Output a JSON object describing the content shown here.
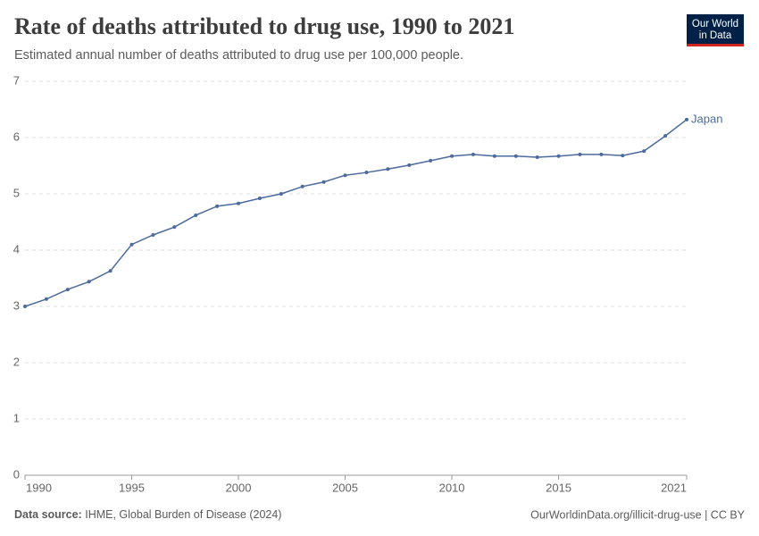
{
  "logo": {
    "line1": "Our World",
    "line2": "in Data"
  },
  "chart_data": {
    "type": "line",
    "title": "Rate of deaths attributed to drug use, 1990 to 2021",
    "subtitle": "Estimated annual number of deaths attributed to drug use per 100,000 people.",
    "x": [
      1990,
      1991,
      1992,
      1993,
      1994,
      1995,
      1996,
      1997,
      1998,
      1999,
      2000,
      2001,
      2002,
      2003,
      2004,
      2005,
      2006,
      2007,
      2008,
      2009,
      2010,
      2011,
      2012,
      2013,
      2014,
      2015,
      2016,
      2017,
      2018,
      2019,
      2020,
      2021
    ],
    "series": [
      {
        "name": "Japan",
        "color": "#4c6a9c",
        "values": [
          3.0,
          3.13,
          3.3,
          3.44,
          3.63,
          4.1,
          4.27,
          4.41,
          4.62,
          4.78,
          4.83,
          4.92,
          5.0,
          5.13,
          5.21,
          5.33,
          5.38,
          5.44,
          5.51,
          5.59,
          5.67,
          5.7,
          5.67,
          5.67,
          5.65,
          5.67,
          5.7,
          5.7,
          5.68,
          5.76,
          6.03,
          6.32
        ]
      }
    ],
    "xlim": [
      1990,
      2021
    ],
    "xticks": [
      1990,
      1995,
      2000,
      2005,
      2010,
      2015,
      2021
    ],
    "ylim": [
      0,
      7
    ],
    "yticks": [
      0,
      1,
      2,
      3,
      4,
      5,
      6,
      7
    ],
    "grid": true,
    "source_label": "Data source:",
    "source": "IHME, Global Burden of Disease (2024)",
    "footer_right": "OurWorldinData.org/illicit-drug-use | CC BY"
  }
}
